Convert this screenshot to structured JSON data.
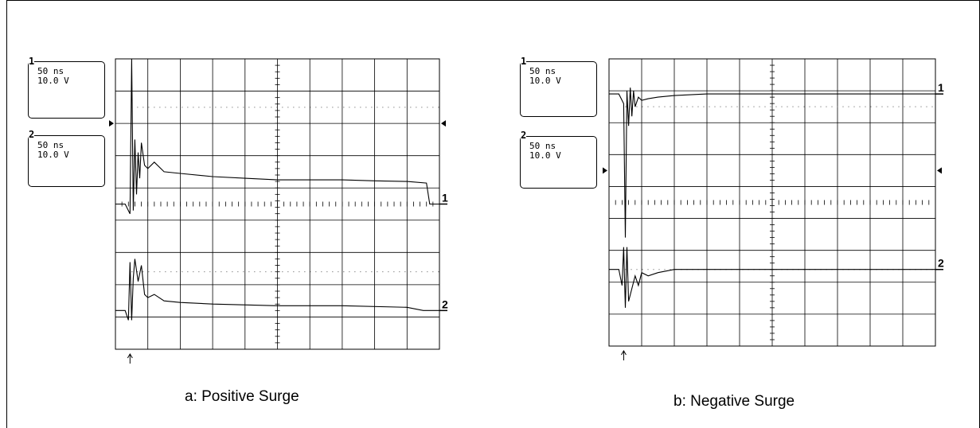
{
  "panels": [
    {
      "caption": "a: Positive Surge",
      "channels": [
        {
          "number": "1",
          "timebase": "50 ns",
          "volts": "10.0 V"
        },
        {
          "number": "2",
          "timebase": "50 ns",
          "volts": "10.0 V"
        }
      ]
    },
    {
      "caption": "b: Negative Surge",
      "channels": [
        {
          "number": "1",
          "timebase": "50 ns",
          "volts": "10.0 V"
        },
        {
          "number": "2",
          "timebase": "50 ns",
          "volts": "10.0 V"
        }
      ]
    }
  ],
  "chart_data": [
    {
      "type": "line",
      "title": "a: Positive Surge",
      "x_divisions": 10,
      "y_divisions": 9,
      "time_per_div": "50 ns",
      "volts_per_div": "10.0 V",
      "trigger_marker": "arrow below trace start",
      "series": [
        {
          "name": "1",
          "baseline_div": 4.5,
          "x": [
            0,
            0.3,
            0.45,
            0.5,
            0.55,
            0.6,
            0.65,
            0.7,
            0.75,
            0.8,
            0.9,
            1.0,
            1.2,
            1.5,
            2.0,
            3.0,
            4.0,
            5.0,
            6.0,
            7.0,
            8.0,
            9.0,
            9.6,
            9.7,
            10.0
          ],
          "y": [
            0,
            0,
            -0.3,
            4.5,
            -0.2,
            2.0,
            0.3,
            1.6,
            0.8,
            1.9,
            1.2,
            1.1,
            1.3,
            1.0,
            0.95,
            0.85,
            0.8,
            0.75,
            0.75,
            0.75,
            0.72,
            0.7,
            0.65,
            0,
            0
          ]
        },
        {
          "name": "2",
          "baseline_div": 7.8,
          "x": [
            0,
            0.3,
            0.4,
            0.45,
            0.5,
            0.55,
            0.6,
            0.7,
            0.8,
            0.9,
            1.0,
            1.2,
            1.5,
            2.0,
            3.0,
            5.0,
            7.0,
            9.0,
            9.5,
            10.0
          ],
          "y": [
            0,
            0,
            -0.3,
            1.5,
            -0.3,
            1.0,
            1.6,
            0.9,
            1.4,
            0.5,
            0.4,
            0.5,
            0.3,
            0.25,
            0.2,
            0.15,
            0.15,
            0.1,
            0,
            0
          ]
        }
      ]
    },
    {
      "type": "line",
      "title": "b: Negative Surge",
      "x_divisions": 10,
      "y_divisions": 9,
      "time_per_div": "50 ns",
      "volts_per_div": "10.0 V",
      "trigger_marker": "arrow below trace start",
      "series": [
        {
          "name": "1",
          "baseline_div": 1.1,
          "x": [
            0,
            0.3,
            0.45,
            0.5,
            0.55,
            0.6,
            0.65,
            0.7,
            0.75,
            0.8,
            0.9,
            1.0,
            1.2,
            1.5,
            2.0,
            3.0,
            4.0,
            6.0,
            8.0,
            10.0
          ],
          "y": [
            0,
            0,
            -0.3,
            -4.5,
            0.1,
            -1.0,
            0.2,
            -0.7,
            0.1,
            -0.4,
            -0.1,
            -0.2,
            -0.15,
            -0.1,
            -0.05,
            0,
            0,
            0,
            0,
            0
          ]
        },
        {
          "name": "2",
          "baseline_div": 6.6,
          "x": [
            0,
            0.3,
            0.4,
            0.45,
            0.5,
            0.55,
            0.6,
            0.7,
            0.8,
            0.9,
            1.0,
            1.2,
            1.5,
            2.0,
            4.0,
            6.0,
            8.0,
            10.0
          ],
          "y": [
            0,
            0,
            -0.5,
            0.7,
            -1.2,
            0.7,
            -1.0,
            -0.6,
            -0.2,
            -0.5,
            -0.1,
            -0.2,
            -0.1,
            0,
            0,
            0,
            0,
            0
          ]
        }
      ]
    }
  ]
}
